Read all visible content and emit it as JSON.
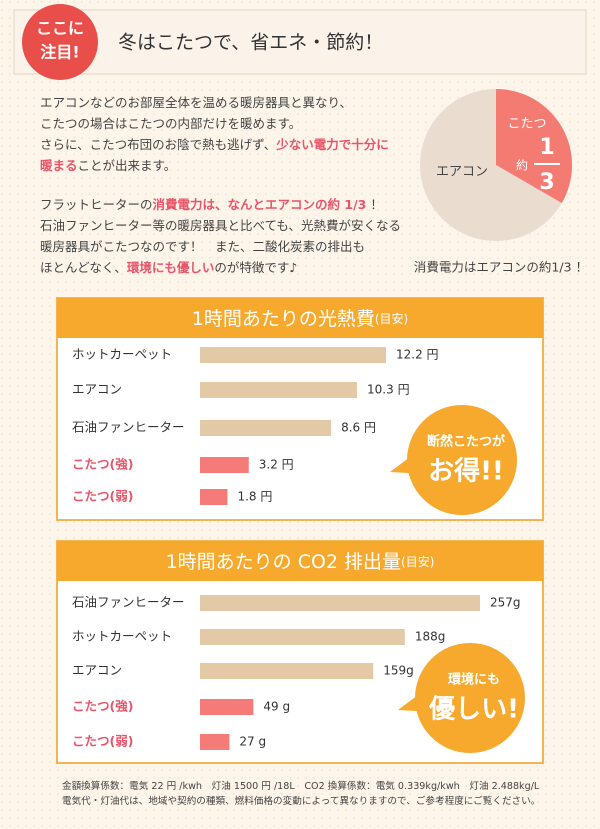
{
  "header": {
    "badge": [
      "ここに",
      "注目!"
    ],
    "title": "冬はこたつで、省エネ・節約！"
  },
  "intro": [
    [
      [
        {
          "text": "エアコンなどのお部屋全体を温める暖房器具と異なり、",
          "highlight": false
        }
      ],
      [
        {
          "text": "こたつの場合はこたつの内部だけを暖めます。",
          "highlight": false
        }
      ],
      [
        {
          "text": "さらに、こたつ布団のお陰で熱も逃げず、",
          "highlight": false
        },
        {
          "text": "少ない電力で十分に",
          "highlight": true
        }
      ],
      [
        {
          "text": "暖まる",
          "highlight": true
        },
        {
          "text": "ことが出来ます。",
          "highlight": false
        }
      ]
    ],
    [
      [
        {
          "text": "フラットヒーターの",
          "highlight": false
        },
        {
          "text": "消費電力は、なんとエアコンの約 1/3",
          "highlight": true
        },
        {
          "text": " ！",
          "highlight": false
        }
      ],
      [
        {
          "text": "石油ファンヒーター等の暖房器具と比べても、光熱費が安くなる",
          "highlight": false
        }
      ],
      [
        {
          "text": "暖房器具がこたつなのです！　また、二酸化炭素の排出も",
          "highlight": false
        }
      ],
      [
        {
          "text": "ほとんどなく、",
          "highlight": false
        },
        {
          "text": "環境にも優しい",
          "highlight": true
        },
        {
          "text": "のが特徴です♪",
          "highlight": false
        }
      ]
    ]
  ],
  "pie": {
    "outer_label": "エアコン",
    "inner_label": "こたつ",
    "prefix": "約",
    "numerator": 1,
    "denominator": 3,
    "caption": "消費電力はエアコンの約1/3 ！"
  },
  "chart_data": [
    {
      "type": "bar",
      "title": "1時間あたりの光熱費",
      "title_note": "(目安)",
      "categories": [
        "ホットカーペット",
        "エアコン",
        "石油ファンヒーター",
        "こたつ(強)",
        "こたつ(弱)"
      ],
      "values": [
        12.2,
        10.3,
        8.6,
        3.2,
        1.8
      ],
      "value_labels": [
        "12.2 円",
        "10.3 円",
        "8.6 円",
        "3.2 円",
        "1.8 円"
      ],
      "colors": [
        "#e3c9a6",
        "#e3c9a6",
        "#e3c9a6",
        "#f47b78",
        "#f47b78"
      ],
      "label_colors": [
        "#333333",
        "#333333",
        "#333333",
        "#e8556a",
        "#e8556a"
      ],
      "callout": [
        "断然こたつが",
        "お得!!"
      ]
    },
    {
      "type": "bar",
      "title": "1時間あたりの CO2 排出量",
      "title_note": "(目安)",
      "categories": [
        "石油ファンヒーター",
        "ホットカーペット",
        "エアコン",
        "こたつ(強)",
        "こたつ(弱)"
      ],
      "values": [
        257,
        188,
        159,
        49,
        27
      ],
      "value_labels": [
        "257g",
        "188g",
        "159g",
        "49 g",
        "27 g"
      ],
      "colors": [
        "#e3c9a6",
        "#e3c9a6",
        "#e3c9a6",
        "#f47b78",
        "#f47b78"
      ],
      "label_colors": [
        "#333333",
        "#333333",
        "#333333",
        "#e8556a",
        "#e8556a"
      ],
      "callout": [
        "環境にも",
        "優しい!"
      ]
    }
  ],
  "footnotes": [
    "金額換算係数：電気 22 円 /kwh　灯油 1500 円 /18L　CO2 換算係数：電気 0.339kg/kwh　灯油 2.488kg/L",
    "電気代・灯油代は、地域や契約の種類、燃料価格の変動によって異なりますので、ご参考程度にご覧ください。"
  ]
}
